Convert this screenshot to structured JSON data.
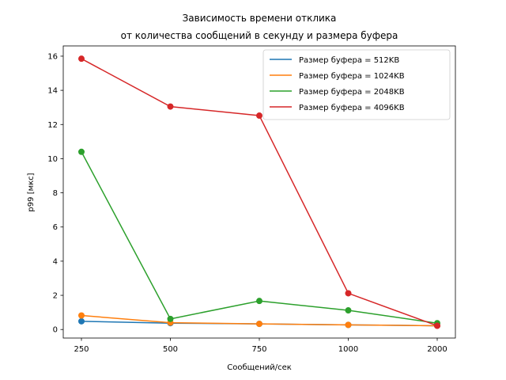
{
  "chart_data": {
    "type": "line",
    "title_lines": [
      "Зависимость времени отклика",
      "от количества сообщений в секунду и размера буфера"
    ],
    "xlabel": "Сообщений/сек",
    "ylabel": "p99 [мкс]",
    "categories": [
      "250",
      "500",
      "750",
      "1000",
      "2000"
    ],
    "ylim": [
      -0.5,
      16.6
    ],
    "yticks": [
      0,
      2,
      4,
      6,
      8,
      10,
      12,
      14,
      16
    ],
    "grid": false,
    "legend_position": "top-right",
    "series": [
      {
        "name": "Размер буфера = 512KB",
        "color": "#1f77b4",
        "values": [
          0.48,
          0.37,
          0.33,
          0.27,
          0.22
        ]
      },
      {
        "name": "Размер буфера = 1024KB",
        "color": "#ff7f0e",
        "values": [
          0.82,
          0.4,
          0.33,
          0.27,
          0.22
        ]
      },
      {
        "name": "Размер буфера = 2048KB",
        "color": "#2ca02c",
        "values": [
          10.4,
          0.62,
          1.67,
          1.12,
          0.37
        ]
      },
      {
        "name": "Размер буфера = 4096KB",
        "color": "#d62728",
        "values": [
          15.85,
          13.05,
          12.52,
          2.12,
          0.22
        ]
      }
    ]
  }
}
